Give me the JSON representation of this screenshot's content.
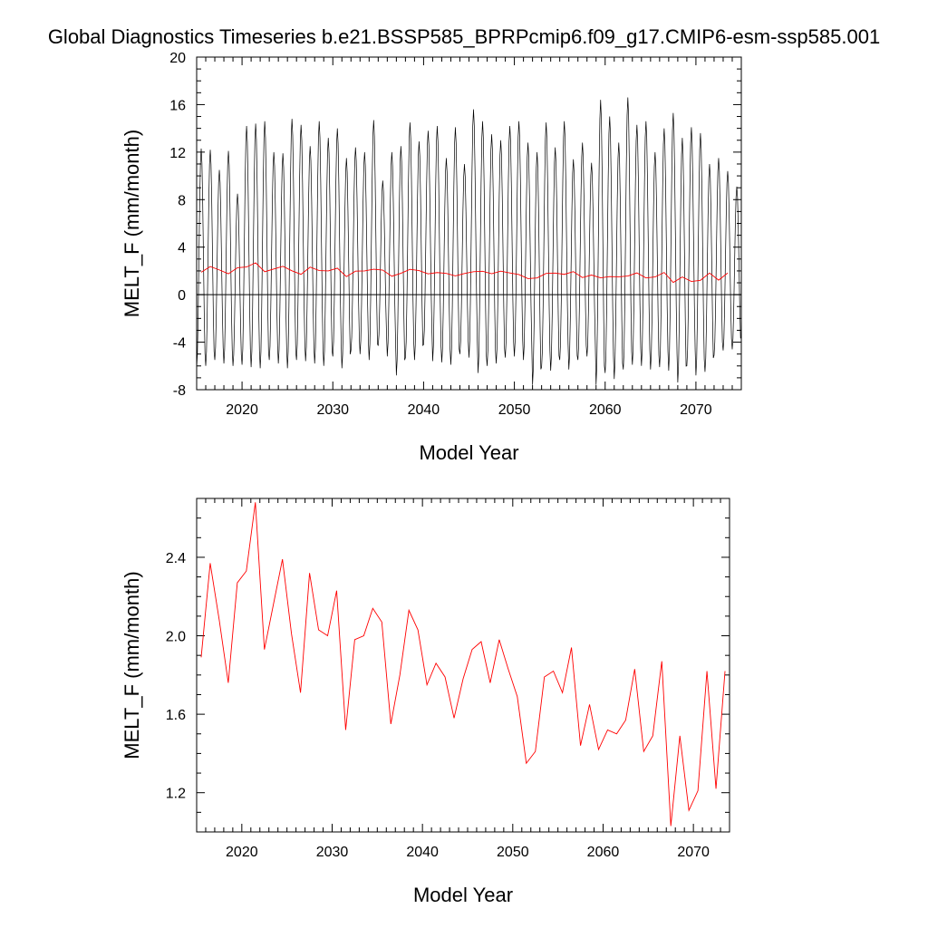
{
  "title": "Global Diagnostics Timeseries b.e21.BSSP585_BPRPcmip6.f09_g17.CMIP6-esm-ssp585.001",
  "colors": {
    "monthly": "#000000",
    "annual": "#ff0000",
    "zero_line": "#000000"
  },
  "chart_data": [
    {
      "type": "line",
      "xlabel": "Model Year",
      "ylabel": "MELT_F (mm/month)",
      "xlim": [
        2015,
        2075
      ],
      "ylim": [
        -8,
        20
      ],
      "xticks": [
        2020,
        2030,
        2040,
        2050,
        2060,
        2070
      ],
      "yticks": [
        -8,
        -4,
        0,
        4,
        8,
        12,
        16,
        20
      ],
      "ytick_labels": [
        "-8",
        "-4",
        "0",
        "4",
        "8",
        "12",
        "16",
        "20"
      ],
      "reference_line_y": 0,
      "series": [
        {
          "color": "#000000",
          "start": 2015,
          "step": 0.08333,
          "annual_peaks": [
            12.3,
            12.2,
            10.5,
            12.1,
            8.5,
            14.2,
            14.4,
            14.6,
            12.0,
            11.9,
            14.8,
            14.3,
            12.5,
            14.6,
            13.2,
            14.0,
            11.5,
            12.4,
            12.0,
            14.7,
            9.6,
            12.0,
            12.5,
            14.5,
            12.9,
            13.8,
            14.2,
            11.5,
            14.1,
            11.0,
            15.6,
            14.6,
            13.5,
            13.0,
            14.2,
            14.6,
            12.8,
            12.0,
            14.5,
            12.4,
            14.6,
            11.4,
            12.8,
            11.1,
            16.4,
            15.0,
            12.8,
            16.6,
            14.3,
            14.6,
            12.0,
            14.0,
            15.3,
            13.2,
            14.1,
            13.6,
            11.0,
            11.5,
            10.4,
            9.1
          ],
          "annual_troughs": [
            -6.2,
            -6.0,
            -5.5,
            -5.8,
            -6.0,
            -5.9,
            -6.1,
            -6.2,
            -5.5,
            -5.8,
            -6.2,
            -5.5,
            -5.6,
            -5.8,
            -6.0,
            -5.2,
            -6.2,
            -4.7,
            -5.0,
            -5.5,
            -4.3,
            -5.2,
            -6.8,
            -5.3,
            -5.5,
            -4.2,
            -5.6,
            -5.7,
            -5.9,
            -5.0,
            -5.3,
            -6.6,
            -6.0,
            -5.8,
            -5.3,
            -5.2,
            -5.5,
            -7.6,
            -6.1,
            -6.4,
            -5.5,
            -6.3,
            -5.5,
            -5.2,
            -7.6,
            -6.6,
            -7.1,
            -6.3,
            -5.9,
            -6.0,
            -6.3,
            -6.1,
            -6.4,
            -7.4,
            -6.0,
            -6.8,
            -6.5,
            -5.1,
            -4.7,
            -4.6
          ]
        },
        {
          "color": "#ff0000",
          "x": [
            2015.5,
            2016.5,
            2017.5,
            2018.5,
            2019.5,
            2020.5,
            2021.5,
            2022.5,
            2023.5,
            2024.5,
            2025.5,
            2026.5,
            2027.5,
            2028.5,
            2029.5,
            2030.5,
            2031.5,
            2032.5,
            2033.5,
            2034.5,
            2035.5,
            2036.5,
            2037.5,
            2038.5,
            2039.5,
            2040.5,
            2041.5,
            2042.5,
            2043.5,
            2044.5,
            2045.5,
            2046.5,
            2047.5,
            2048.5,
            2049.5,
            2050.5,
            2051.5,
            2052.5,
            2053.5,
            2054.5,
            2055.5,
            2056.5,
            2057.5,
            2058.5,
            2059.5,
            2060.5,
            2061.5,
            2062.5,
            2063.5,
            2064.5,
            2065.5,
            2066.5,
            2067.5,
            2068.5,
            2069.5,
            2070.5,
            2071.5,
            2072.5,
            2073.5
          ],
          "values": [
            1.89,
            2.37,
            2.08,
            1.76,
            2.27,
            2.33,
            2.68,
            1.93,
            2.16,
            2.39,
            2.01,
            1.71,
            2.32,
            2.03,
            2.0,
            2.23,
            1.52,
            1.98,
            2.0,
            2.14,
            2.07,
            1.55,
            1.8,
            2.13,
            2.03,
            1.75,
            1.86,
            1.79,
            1.58,
            1.78,
            1.93,
            1.97,
            1.76,
            1.98,
            1.83,
            1.69,
            1.35,
            1.41,
            1.79,
            1.82,
            1.71,
            1.94,
            1.44,
            1.65,
            1.42,
            1.52,
            1.5,
            1.57,
            1.83,
            1.41,
            1.49,
            1.87,
            1.03,
            1.49,
            1.11,
            1.21,
            1.82,
            1.22,
            1.82
          ]
        }
      ]
    },
    {
      "type": "line",
      "xlabel": "Model Year",
      "ylabel": "MELT_F (mm/month)",
      "xlim": [
        2015,
        2074
      ],
      "ylim": [
        1.0,
        2.7
      ],
      "xticks": [
        2020,
        2030,
        2040,
        2050,
        2060,
        2070
      ],
      "yticks": [
        1.2,
        1.6,
        2.0,
        2.4
      ],
      "ytick_labels": [
        "1.2",
        "1.6",
        "2.0",
        "2.4"
      ],
      "series": [
        {
          "color": "#ff0000",
          "x": [
            2015.5,
            2016.5,
            2017.5,
            2018.5,
            2019.5,
            2020.5,
            2021.5,
            2022.5,
            2023.5,
            2024.5,
            2025.5,
            2026.5,
            2027.5,
            2028.5,
            2029.5,
            2030.5,
            2031.5,
            2032.5,
            2033.5,
            2034.5,
            2035.5,
            2036.5,
            2037.5,
            2038.5,
            2039.5,
            2040.5,
            2041.5,
            2042.5,
            2043.5,
            2044.5,
            2045.5,
            2046.5,
            2047.5,
            2048.5,
            2049.5,
            2050.5,
            2051.5,
            2052.5,
            2053.5,
            2054.5,
            2055.5,
            2056.5,
            2057.5,
            2058.5,
            2059.5,
            2060.5,
            2061.5,
            2062.5,
            2063.5,
            2064.5,
            2065.5,
            2066.5,
            2067.5,
            2068.5,
            2069.5,
            2070.5,
            2071.5,
            2072.5,
            2073.5
          ],
          "values": [
            1.89,
            2.37,
            2.08,
            1.76,
            2.27,
            2.33,
            2.68,
            1.93,
            2.16,
            2.39,
            2.01,
            1.71,
            2.32,
            2.03,
            2.0,
            2.23,
            1.52,
            1.98,
            2.0,
            2.14,
            2.07,
            1.55,
            1.8,
            2.13,
            2.03,
            1.75,
            1.86,
            1.79,
            1.58,
            1.78,
            1.93,
            1.97,
            1.76,
            1.98,
            1.83,
            1.69,
            1.35,
            1.41,
            1.79,
            1.82,
            1.71,
            1.94,
            1.44,
            1.65,
            1.42,
            1.52,
            1.5,
            1.57,
            1.83,
            1.41,
            1.49,
            1.87,
            1.03,
            1.49,
            1.11,
            1.21,
            1.82,
            1.22,
            1.82
          ]
        }
      ]
    }
  ]
}
